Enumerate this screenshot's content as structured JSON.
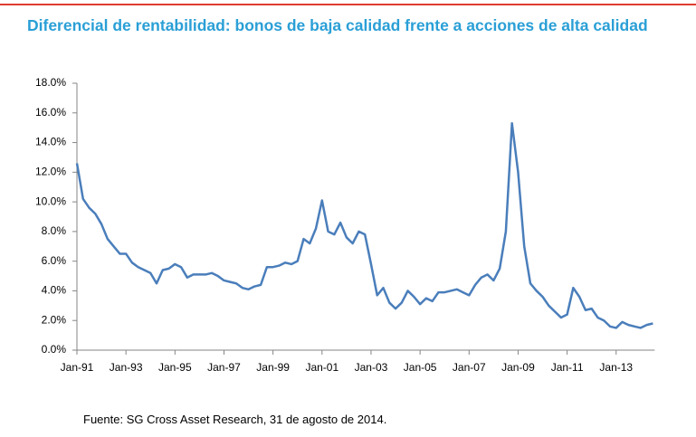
{
  "chart_data": {
    "type": "line",
    "title": "Diferencial de rentabilidad: bonos de baja calidad frente a acciones de alta calidad",
    "source": "Fuente: SG Cross Asset Research, 31 de agosto de 2014.",
    "categories": [
      "Jan-91",
      null,
      null,
      null,
      null,
      null,
      null,
      null,
      "Jan-93",
      null,
      null,
      null,
      null,
      null,
      null,
      null,
      "Jan-95",
      null,
      null,
      null,
      null,
      null,
      null,
      null,
      "Jan-97",
      null,
      null,
      null,
      null,
      null,
      null,
      null,
      "Jan-99",
      null,
      null,
      null,
      null,
      null,
      null,
      null,
      "Jan-01",
      null,
      null,
      null,
      null,
      null,
      null,
      null,
      "Jan-03",
      null,
      null,
      null,
      null,
      null,
      null,
      null,
      "Jan-05",
      null,
      null,
      null,
      null,
      null,
      null,
      null,
      "Jan-07",
      null,
      null,
      null,
      null,
      null,
      null,
      null,
      "Jan-09",
      null,
      null,
      null,
      null,
      null,
      null,
      null,
      "Jan-11",
      null,
      null,
      null,
      null,
      null,
      null,
      null,
      "Jan-13",
      null,
      null,
      null,
      null,
      null,
      null
    ],
    "series": [
      {
        "name": "Diferencial",
        "color": "#4a7ebb",
        "values": [
          12.6,
          10.2,
          9.6,
          9.2,
          8.5,
          7.5,
          7.0,
          6.5,
          6.5,
          5.9,
          5.6,
          5.4,
          5.2,
          4.5,
          5.4,
          5.5,
          5.8,
          5.6,
          4.9,
          5.1,
          5.1,
          5.1,
          5.2,
          5.0,
          4.7,
          4.6,
          4.5,
          4.2,
          4.1,
          4.3,
          4.4,
          5.6,
          5.6,
          5.7,
          5.9,
          5.8,
          6.0,
          7.5,
          7.2,
          8.2,
          10.1,
          8.0,
          7.8,
          8.6,
          7.6,
          7.2,
          8.0,
          7.8,
          5.8,
          3.7,
          4.2,
          3.2,
          2.8,
          3.2,
          4.0,
          3.6,
          3.1,
          3.5,
          3.3,
          3.9,
          3.9,
          4.0,
          4.1,
          3.9,
          3.7,
          4.4,
          4.9,
          5.1,
          4.7,
          5.5,
          8.0,
          15.3,
          12.0,
          7.0,
          4.5,
          4.0,
          3.6,
          3.0,
          2.6,
          2.2,
          2.4,
          4.2,
          3.6,
          2.7,
          2.8,
          2.2,
          2.0,
          1.6,
          1.5,
          1.9,
          1.7,
          1.6,
          1.5,
          1.7,
          1.8
        ]
      }
    ],
    "ylim": [
      0,
      18
    ],
    "yticks": [
      {
        "value": 0,
        "label": "0.0%"
      },
      {
        "value": 2,
        "label": "2.0%"
      },
      {
        "value": 4,
        "label": "4.0%"
      },
      {
        "value": 6,
        "label": "6.0%"
      },
      {
        "value": 8,
        "label": "8.0%"
      },
      {
        "value": 10,
        "label": "10.0%"
      },
      {
        "value": 12,
        "label": "12.0%"
      },
      {
        "value": 14,
        "label": "14.0%"
      },
      {
        "value": 16,
        "label": "16.0%"
      },
      {
        "value": 18,
        "label": "18.0%"
      }
    ],
    "grid": false
  }
}
